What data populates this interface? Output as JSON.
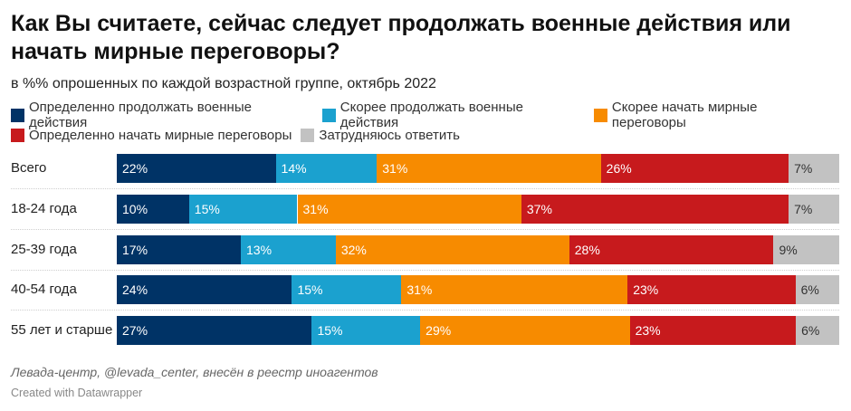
{
  "title": "Как Вы считаете, сейчас следует продолжать военные действия или начать мирные переговоры?",
  "subtitle": "в %% опрошенных по каждой возрастной группе, октябрь 2022",
  "source": "Левада-центр, @levada_center, внесён в реестр иноагентов",
  "credit": "Created with Datawrapper",
  "chart_data": {
    "type": "bar",
    "orientation": "horizontal",
    "stacked": true,
    "title": "Как Вы считаете, сейчас следует продолжать военные действия или начать мирные переговоры?",
    "subtitle": "в %% опрошенных по каждой возрастной группе, октябрь 2022",
    "xlabel": "",
    "ylabel": "",
    "xlim": [
      0,
      100
    ],
    "unit": "%",
    "grid": false,
    "legend_position": "top",
    "categories": [
      "Всего",
      "18-24 года",
      "25-39 года",
      "40-54 года",
      "55 лет и старше"
    ],
    "series": [
      {
        "name": "Определенно продолжать военные действия",
        "color": "#003366",
        "label_color": "#ffffff",
        "values": [
          22,
          10,
          17,
          24,
          27
        ]
      },
      {
        "name": "Скорее продолжать военные действия",
        "color": "#1ba1cf",
        "label_color": "#ffffff",
        "values": [
          14,
          15,
          13,
          15,
          15
        ]
      },
      {
        "name": "Скорее начать мирные переговоры",
        "color": "#f78b00",
        "label_color": "#ffffff",
        "values": [
          31,
          31,
          32,
          31,
          29
        ]
      },
      {
        "name": "Определенно начать мирные переговоры",
        "color": "#c71a1d",
        "label_color": "#ffffff",
        "values": [
          26,
          37,
          28,
          23,
          23
        ]
      },
      {
        "name": "Затрудняюсь ответить",
        "color": "#c2c2c2",
        "label_color": "#333333",
        "values": [
          7,
          7,
          9,
          6,
          6
        ]
      }
    ]
  }
}
